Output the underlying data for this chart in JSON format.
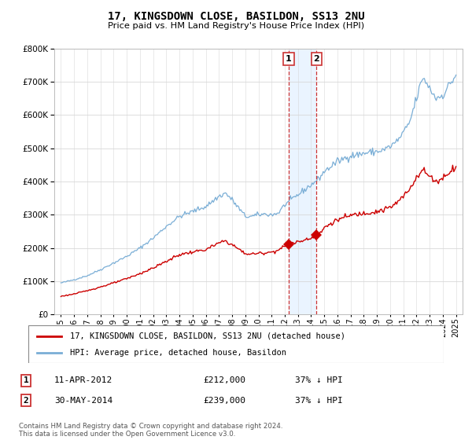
{
  "title": "17, KINGSDOWN CLOSE, BASILDON, SS13 2NU",
  "subtitle": "Price paid vs. HM Land Registry's House Price Index (HPI)",
  "hpi_label": "HPI: Average price, detached house, Basildon",
  "price_label": "17, KINGSDOWN CLOSE, BASILDON, SS13 2NU (detached house)",
  "transactions": [
    {
      "num": 1,
      "date": "11-APR-2012",
      "price": 212000,
      "hpi_diff": "37% ↓ HPI"
    },
    {
      "num": 2,
      "date": "30-MAY-2014",
      "price": 239000,
      "hpi_diff": "37% ↓ HPI"
    }
  ],
  "footnote": "Contains HM Land Registry data © Crown copyright and database right 2024.\nThis data is licensed under the Open Government Licence v3.0.",
  "hpi_color": "#7aaed6",
  "price_color": "#cc0000",
  "highlight_color": "#ddeeff",
  "ylim": [
    0,
    800000
  ],
  "yticks": [
    0,
    100000,
    200000,
    300000,
    400000,
    500000,
    600000,
    700000,
    800000
  ],
  "xlim_start": 1994.5,
  "xlim_end": 2025.5,
  "t1_x": 2012.292,
  "t1_y": 212000,
  "t2_x": 2014.417,
  "t2_y": 239000
}
